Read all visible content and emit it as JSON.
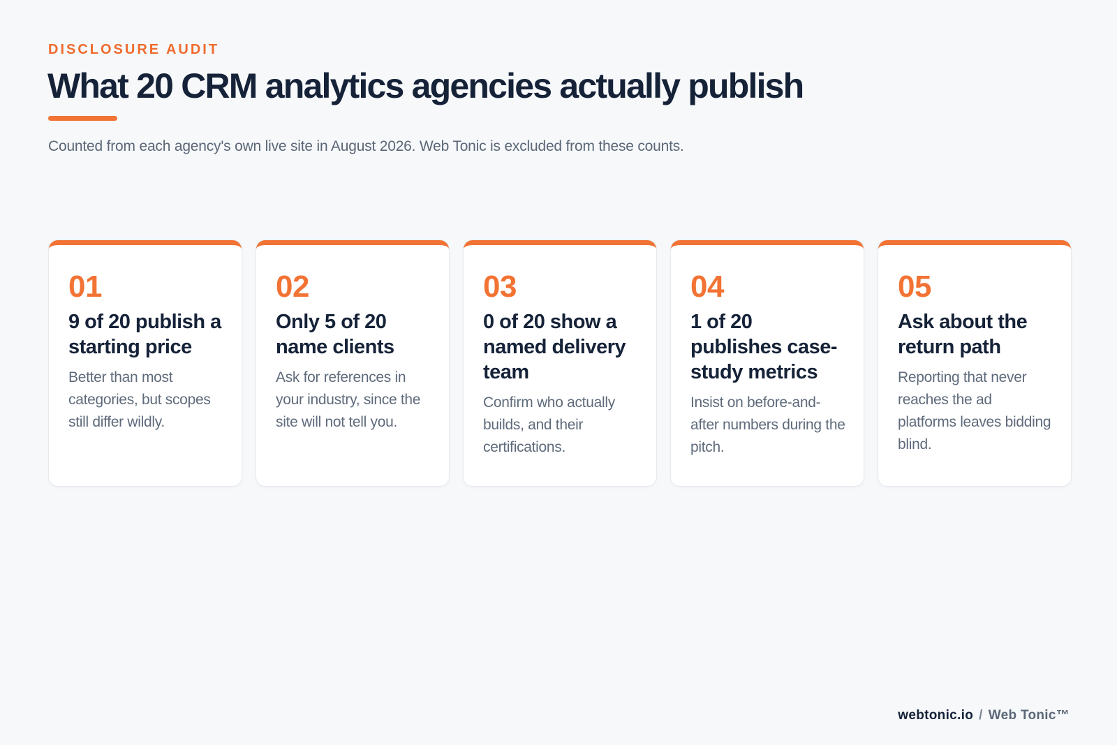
{
  "header": {
    "eyebrow": "DISCLOSURE AUDIT",
    "title": "What 20 CRM analytics agencies actually publish",
    "subtitle": "Counted from each agency's own live site in August 2026. Web Tonic is excluded from these counts."
  },
  "cards": [
    {
      "number": "01",
      "heading": "9 of 20 publish a starting price",
      "body": "Better than most categories, but scopes still differ wildly."
    },
    {
      "number": "02",
      "heading": "Only 5 of 20 name clients",
      "body": "Ask for references in your industry, since the site will not tell you."
    },
    {
      "number": "03",
      "heading": "0 of 20 show a named delivery team",
      "body": "Confirm who actually builds, and their certifications."
    },
    {
      "number": "04",
      "heading": "1 of 20 publishes case-study metrics",
      "body": "Insist on before-and-after numbers during the pitch."
    },
    {
      "number": "05",
      "heading": "Ask about the return path",
      "body": "Reporting that never reaches the ad platforms leaves bidding blind."
    }
  ],
  "footer": {
    "domain": "webtonic.io",
    "separator": "/",
    "brand": "Web Tonic™"
  },
  "colors": {
    "accent": "#f27334",
    "heading": "#152238",
    "muted": "#5f6b7b",
    "background": "#f6f8fa"
  }
}
